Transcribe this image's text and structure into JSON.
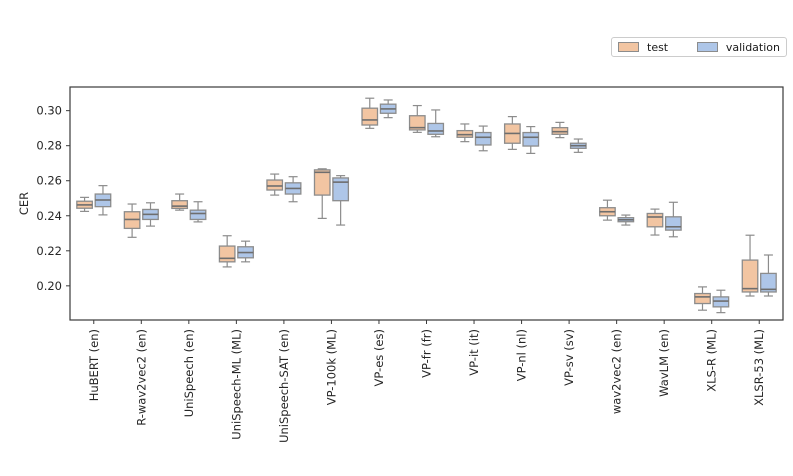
{
  "figure": {
    "ylabel": "CER",
    "background": "#ffffff"
  },
  "chart_data": {
    "type": "boxplot",
    "title": "",
    "xlabel": "",
    "ylabel": "CER",
    "ylim": [
      0.1805,
      0.3135
    ],
    "yticks": [
      0.2,
      0.22,
      0.24,
      0.26,
      0.28,
      0.3
    ],
    "ytick_labels": [
      "0.20",
      "0.22",
      "0.24",
      "0.26",
      "0.28",
      "0.30"
    ],
    "grid": false,
    "legend_position": "top-right-outside",
    "categories": [
      "HuBERT (en)",
      "R-wav2vec2 (en)",
      "UniSpeech (en)",
      "UniSpeech-ML (ML)",
      "UniSpeech-SAT (en)",
      "VP-100k (ML)",
      "VP-es (es)",
      "VP-fr (fr)",
      "VP-it (it)",
      "VP-nl (nl)",
      "VP-sv (sv)",
      "wav2vec2 (en)",
      "WavLM (en)",
      "XLS-R (ML)",
      "XLSR-53 (ML)"
    ],
    "style": {
      "edge_color": "#8c8c8c",
      "median_color": "#6e6e6e",
      "whisker_color": "#8c8c8c",
      "spine_color": "#3a3a3a",
      "text_color": "#262626"
    },
    "series": [
      {
        "name": "test",
        "color": "#F2C5A2",
        "boxes": [
          {
            "whislo": 0.2425,
            "q1": 0.2443,
            "med": 0.2462,
            "q3": 0.2483,
            "whishi": 0.2505
          },
          {
            "whislo": 0.2277,
            "q1": 0.2328,
            "med": 0.2379,
            "q3": 0.2423,
            "whishi": 0.2467
          },
          {
            "whislo": 0.2432,
            "q1": 0.2442,
            "med": 0.2455,
            "q3": 0.2486,
            "whishi": 0.2524
          },
          {
            "whislo": 0.2108,
            "q1": 0.2137,
            "med": 0.2157,
            "q3": 0.2227,
            "whishi": 0.2286
          },
          {
            "whislo": 0.2518,
            "q1": 0.2547,
            "med": 0.257,
            "q3": 0.2604,
            "whishi": 0.2638
          },
          {
            "whislo": 0.2385,
            "q1": 0.2518,
            "med": 0.2648,
            "q3": 0.2662,
            "whishi": 0.2668
          },
          {
            "whislo": 0.2899,
            "q1": 0.2918,
            "med": 0.2947,
            "q3": 0.3014,
            "whishi": 0.3071
          },
          {
            "whislo": 0.2876,
            "q1": 0.289,
            "med": 0.2903,
            "q3": 0.2971,
            "whishi": 0.3029
          },
          {
            "whislo": 0.2823,
            "q1": 0.2848,
            "med": 0.2863,
            "q3": 0.2886,
            "whishi": 0.2924
          },
          {
            "whislo": 0.2779,
            "q1": 0.2814,
            "med": 0.287,
            "q3": 0.2924,
            "whishi": 0.2966
          },
          {
            "whislo": 0.2846,
            "q1": 0.2865,
            "med": 0.288,
            "q3": 0.2903,
            "whishi": 0.2933
          },
          {
            "whislo": 0.2375,
            "q1": 0.24,
            "med": 0.2423,
            "q3": 0.2446,
            "whishi": 0.2489
          },
          {
            "whislo": 0.229,
            "q1": 0.2337,
            "med": 0.2393,
            "q3": 0.2413,
            "whishi": 0.2438
          },
          {
            "whislo": 0.1861,
            "q1": 0.1899,
            "med": 0.1937,
            "q3": 0.1956,
            "whishi": 0.1994
          },
          {
            "whislo": 0.1942,
            "q1": 0.1965,
            "med": 0.1984,
            "q3": 0.2147,
            "whishi": 0.2289
          }
        ]
      },
      {
        "name": "validation",
        "color": "#AEC6E8",
        "boxes": [
          {
            "whislo": 0.2405,
            "q1": 0.2452,
            "med": 0.249,
            "q3": 0.2524,
            "whishi": 0.2572
          },
          {
            "whislo": 0.2341,
            "q1": 0.2379,
            "med": 0.2408,
            "q3": 0.2436,
            "whishi": 0.2474
          },
          {
            "whislo": 0.2365,
            "q1": 0.2379,
            "med": 0.2413,
            "q3": 0.2432,
            "whishi": 0.248
          },
          {
            "whislo": 0.2137,
            "q1": 0.216,
            "med": 0.219,
            "q3": 0.2223,
            "whishi": 0.2255
          },
          {
            "whislo": 0.248,
            "q1": 0.2524,
            "med": 0.2556,
            "q3": 0.2588,
            "whishi": 0.2623
          },
          {
            "whislo": 0.2347,
            "q1": 0.2486,
            "med": 0.2592,
            "q3": 0.2616,
            "whishi": 0.2629
          },
          {
            "whislo": 0.296,
            "q1": 0.2985,
            "med": 0.301,
            "q3": 0.3037,
            "whishi": 0.3061
          },
          {
            "whislo": 0.2851,
            "q1": 0.2865,
            "med": 0.2884,
            "q3": 0.2927,
            "whishi": 0.3004
          },
          {
            "whislo": 0.2771,
            "q1": 0.2804,
            "med": 0.2848,
            "q3": 0.2875,
            "whishi": 0.2912
          },
          {
            "whislo": 0.2756,
            "q1": 0.2798,
            "med": 0.2848,
            "q3": 0.2875,
            "whishi": 0.2909
          },
          {
            "whislo": 0.2762,
            "q1": 0.2785,
            "med": 0.28,
            "q3": 0.2814,
            "whishi": 0.2838
          },
          {
            "whislo": 0.2347,
            "q1": 0.2366,
            "med": 0.2377,
            "q3": 0.2389,
            "whishi": 0.2404
          },
          {
            "whislo": 0.228,
            "q1": 0.2318,
            "med": 0.2337,
            "q3": 0.2394,
            "whishi": 0.2477
          },
          {
            "whislo": 0.1847,
            "q1": 0.188,
            "med": 0.1913,
            "q3": 0.1937,
            "whishi": 0.1975
          },
          {
            "whislo": 0.1942,
            "q1": 0.1965,
            "med": 0.198,
            "q3": 0.2071,
            "whishi": 0.2176
          }
        ]
      }
    ]
  }
}
